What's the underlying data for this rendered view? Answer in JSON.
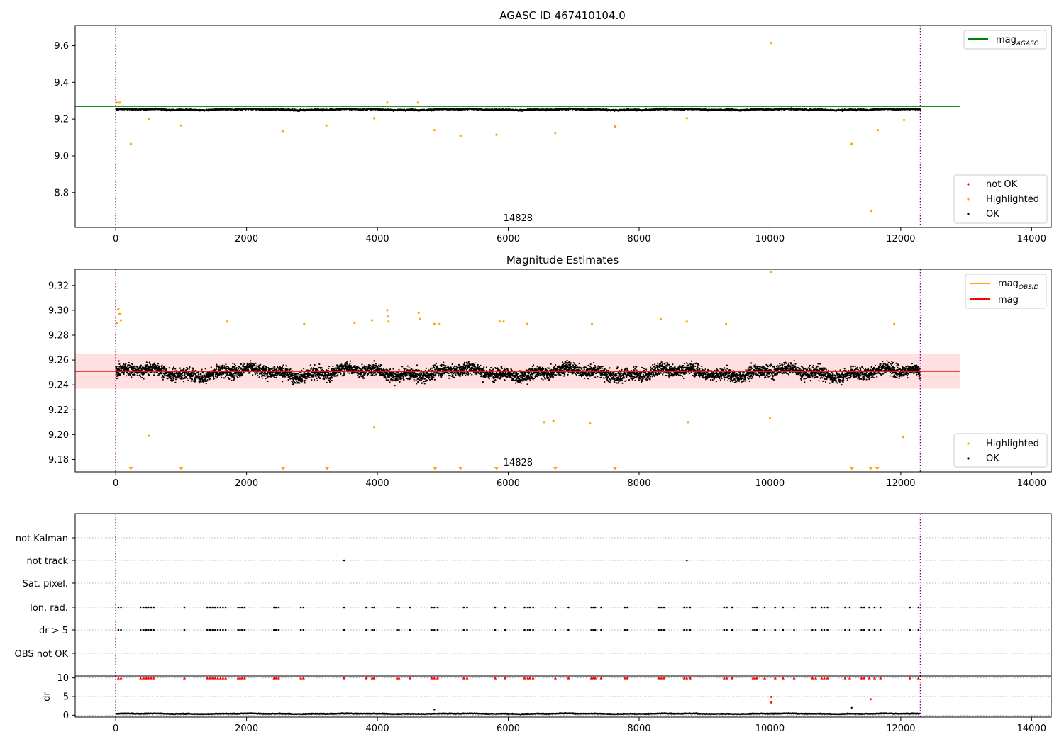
{
  "figure": {
    "colors": {
      "ok": "#000000",
      "highlighted": "#ffa500",
      "not_ok": "#ff0000",
      "mag_agasc": "#008000",
      "mag_obsid": "#ffa500",
      "mag": "#ff0000",
      "band": "#ffc9c9",
      "boundary": "#800080",
      "grid": "#b0b0b0"
    }
  },
  "chart_data": [
    {
      "type": "scatter",
      "title": "AGASC ID 467410104.0",
      "xlim": [
        -620,
        14300
      ],
      "ylim": [
        8.61,
        9.71
      ],
      "x_ticks": [
        0,
        2000,
        4000,
        6000,
        8000,
        10000,
        12000,
        14000
      ],
      "x_tick_labels": [
        "0",
        "2000",
        "4000",
        "6000",
        "8000",
        "10000",
        "12000",
        "14000"
      ],
      "y_ticks": [
        8.8,
        9.0,
        9.2,
        9.4,
        9.6
      ],
      "y_tick_labels": [
        "8.8",
        "9.0",
        "9.2",
        "9.4",
        "9.6"
      ],
      "obsid_boundaries": [
        0,
        12300
      ],
      "obsid_labels": [
        {
          "x": 6150,
          "text": "14828"
        }
      ],
      "reference_lines": [
        {
          "name": "mag_AGASC",
          "label_main": "mag",
          "label_sub": "AGASC",
          "y": 9.27,
          "x_range": [
            -620,
            12900
          ],
          "color": "#008000"
        }
      ],
      "ok_band": {
        "mean": 9.252,
        "low": 9.235,
        "high": 9.275,
        "x_range": [
          0,
          12300
        ]
      },
      "highlighted_points": [
        [
          20,
          9.29
        ],
        [
          60,
          9.29
        ],
        [
          230,
          9.065
        ],
        [
          510,
          9.2
        ],
        [
          1000,
          9.165
        ],
        [
          2550,
          9.135
        ],
        [
          3220,
          9.165
        ],
        [
          3950,
          9.205
        ],
        [
          4150,
          9.29
        ],
        [
          4620,
          9.29
        ],
        [
          4870,
          9.14
        ],
        [
          5270,
          9.11
        ],
        [
          5820,
          9.115
        ],
        [
          6720,
          9.125
        ],
        [
          7630,
          9.16
        ],
        [
          8730,
          9.205
        ],
        [
          10020,
          9.615
        ],
        [
          11250,
          9.065
        ],
        [
          11550,
          8.7
        ],
        [
          11650,
          9.14
        ],
        [
          12050,
          9.195
        ]
      ],
      "legends": [
        {
          "position": "top-right",
          "entries": [
            {
              "label_main": "mag",
              "label_sub": "AGASC",
              "color": "#008000",
              "kind": "line"
            }
          ]
        },
        {
          "position": "bottom-right",
          "entries": [
            {
              "label": "not OK",
              "color": "#ff0000",
              "kind": "point"
            },
            {
              "label": "Highlighted",
              "color": "#ffa500",
              "kind": "point"
            },
            {
              "label": "OK",
              "color": "#000000",
              "kind": "point"
            }
          ]
        }
      ]
    },
    {
      "type": "scatter",
      "title": "Magnitude Estimates",
      "xlim": [
        -620,
        14300
      ],
      "ylim": [
        9.17,
        9.333
      ],
      "x_ticks": [
        0,
        2000,
        4000,
        6000,
        8000,
        10000,
        12000,
        14000
      ],
      "x_tick_labels": [
        "0",
        "2000",
        "4000",
        "6000",
        "8000",
        "10000",
        "12000",
        "14000"
      ],
      "y_ticks": [
        9.18,
        9.2,
        9.22,
        9.24,
        9.26,
        9.28,
        9.3,
        9.32
      ],
      "y_tick_labels": [
        "9.18",
        "9.20",
        "9.22",
        "9.24",
        "9.26",
        "9.28",
        "9.30",
        "9.32"
      ],
      "obsid_boundaries": [
        0,
        12300
      ],
      "obsid_labels": [
        {
          "x": 6150,
          "text": "14828"
        }
      ],
      "reference_lines": [
        {
          "name": "mag_OBSID",
          "label_main": "mag",
          "label_sub": "OBSID",
          "y": 9.251,
          "x_range": [
            0,
            12300
          ],
          "color": "#ffa500"
        },
        {
          "name": "mag",
          "label_main": "mag",
          "y": 9.251,
          "x_range": [
            -620,
            12900
          ],
          "color": "#ff0000"
        }
      ],
      "band": {
        "low": 9.237,
        "high": 9.265,
        "x_range": [
          -620,
          12900
        ]
      },
      "ok_band": {
        "mean": 9.25,
        "low": 9.215,
        "high": 9.288,
        "x_range": [
          0,
          12300
        ]
      },
      "highlighted_points": [
        [
          20,
          9.29
        ],
        [
          40,
          9.301
        ],
        [
          60,
          9.297
        ],
        [
          80,
          9.292
        ],
        [
          510,
          9.199
        ],
        [
          1700,
          9.291
        ],
        [
          2880,
          9.289
        ],
        [
          3650,
          9.29
        ],
        [
          3920,
          9.292
        ],
        [
          3950,
          9.206
        ],
        [
          4150,
          9.3
        ],
        [
          4160,
          9.295
        ],
        [
          4170,
          9.291
        ],
        [
          4630,
          9.298
        ],
        [
          4650,
          9.293
        ],
        [
          4870,
          9.289
        ],
        [
          4950,
          9.289
        ],
        [
          5870,
          9.291
        ],
        [
          5930,
          9.291
        ],
        [
          6290,
          9.289
        ],
        [
          6550,
          9.21
        ],
        [
          6690,
          9.211
        ],
        [
          7250,
          9.209
        ],
        [
          7280,
          9.289
        ],
        [
          8330,
          9.293
        ],
        [
          8730,
          9.291
        ],
        [
          8750,
          9.21
        ],
        [
          9330,
          9.289
        ],
        [
          10000,
          9.213
        ],
        [
          10020,
          9.331
        ],
        [
          11900,
          9.289
        ],
        [
          12040,
          9.198
        ]
      ],
      "clipped_low_markers": [
        230,
        1000,
        2560,
        3230,
        4880,
        5270,
        5820,
        6720,
        7630,
        11250,
        11540,
        11640
      ],
      "legends": [
        {
          "position": "top-right",
          "entries": [
            {
              "label_main": "mag",
              "label_sub": "OBSID",
              "color": "#ffa500",
              "kind": "line"
            },
            {
              "label": "mag",
              "color": "#ff0000",
              "kind": "line"
            }
          ]
        },
        {
          "position": "bottom-right",
          "entries": [
            {
              "label": "Highlighted",
              "color": "#ffa500",
              "kind": "point"
            },
            {
              "label": "OK",
              "color": "#000000",
              "kind": "point"
            }
          ]
        }
      ]
    },
    {
      "type": "scatter",
      "title": "",
      "xlim": [
        -620,
        14300
      ],
      "flag_rows": [
        "not Kalman",
        "not track",
        "Sat. pixel.",
        "Ion. rad.",
        "dr > 5",
        "OBS not OK"
      ],
      "flag_points": {
        "not track": [
          3490,
          8730
        ],
        "Ion. rad.": [
          40,
          80,
          380,
          420,
          450,
          470,
          500,
          540,
          580,
          1050,
          1400,
          1440,
          1480,
          1520,
          1560,
          1600,
          1640,
          1680,
          1870,
          1900,
          1930,
          1970,
          2420,
          2450,
          2490,
          2830,
          2870,
          3490,
          3830,
          3920,
          3950,
          4300,
          4330,
          4500,
          4830,
          4870,
          4920,
          5320,
          5370,
          5800,
          5950,
          6250,
          6300,
          6330,
          6380,
          6720,
          6920,
          7270,
          7300,
          7330,
          7420,
          7780,
          7820,
          8300,
          8340,
          8380,
          8690,
          8730,
          8780,
          9300,
          9340,
          9420,
          9740,
          9770,
          9800,
          9920,
          10080,
          10200,
          10370,
          10650,
          10700,
          10790,
          10830,
          10880,
          11150,
          11220,
          11400,
          11440,
          11520,
          11600,
          11690,
          12140,
          12270
        ],
        "dr > 5": [
          40,
          80,
          380,
          420,
          450,
          470,
          500,
          540,
          580,
          1050,
          1400,
          1440,
          1480,
          1520,
          1560,
          1600,
          1640,
          1680,
          1870,
          1900,
          1930,
          1970,
          2420,
          2450,
          2490,
          2830,
          2870,
          3490,
          3830,
          3920,
          3950,
          4300,
          4330,
          4500,
          4830,
          4870,
          4920,
          5320,
          5370,
          5800,
          5950,
          6250,
          6300,
          6330,
          6380,
          6720,
          6920,
          7270,
          7300,
          7330,
          7420,
          7780,
          7820,
          8300,
          8340,
          8380,
          8690,
          8730,
          8780,
          9300,
          9340,
          9420,
          9740,
          9770,
          9800,
          9920,
          10080,
          10200,
          10370,
          10650,
          10700,
          10790,
          10830,
          10880,
          11150,
          11220,
          11400,
          11440,
          11520,
          11600,
          11690,
          12140,
          12270
        ]
      }
    },
    {
      "type": "scatter",
      "title": "",
      "ylabel": "dr",
      "xlim": [
        -620,
        14300
      ],
      "ylim": [
        -0.5,
        10.5
      ],
      "x_ticks": [
        0,
        2000,
        4000,
        6000,
        8000,
        10000,
        12000,
        14000
      ],
      "x_tick_labels": [
        "0",
        "2000",
        "4000",
        "6000",
        "8000",
        "10000",
        "12000",
        "14000"
      ],
      "y_ticks": [
        0,
        5,
        10
      ],
      "y_tick_labels": [
        "0",
        "5",
        "10"
      ],
      "obsid_boundaries": [
        0,
        12300
      ],
      "ok_band": {
        "mean": 0.4,
        "low": 0.0,
        "high": 0.9,
        "x_range": [
          0,
          12300
        ]
      },
      "clipped_high_x": [
        40,
        80,
        380,
        420,
        450,
        470,
        500,
        540,
        580,
        1050,
        1400,
        1440,
        1480,
        1520,
        1560,
        1600,
        1640,
        1680,
        1870,
        1900,
        1930,
        1970,
        2420,
        2450,
        2490,
        2830,
        2870,
        3490,
        3830,
        3920,
        3950,
        4300,
        4330,
        4500,
        4830,
        4870,
        4920,
        5320,
        5370,
        5800,
        5950,
        6250,
        6300,
        6330,
        6380,
        6720,
        6920,
        7270,
        7300,
        7330,
        7420,
        7780,
        7820,
        8300,
        8340,
        8380,
        8690,
        8730,
        8780,
        9300,
        9340,
        9420,
        9740,
        9770,
        9800,
        9920,
        10080,
        10200,
        10370,
        10650,
        10700,
        10790,
        10830,
        10880,
        11150,
        11220,
        11400,
        11440,
        11520,
        11600,
        11690,
        12140,
        12270
      ],
      "not_ok_points": [
        [
          10020,
          4.9
        ],
        [
          10020,
          3.4
        ],
        [
          11540,
          4.3
        ]
      ],
      "ok_outliers": [
        [
          11250,
          2.0
        ],
        [
          4870,
          1.5
        ]
      ]
    }
  ]
}
